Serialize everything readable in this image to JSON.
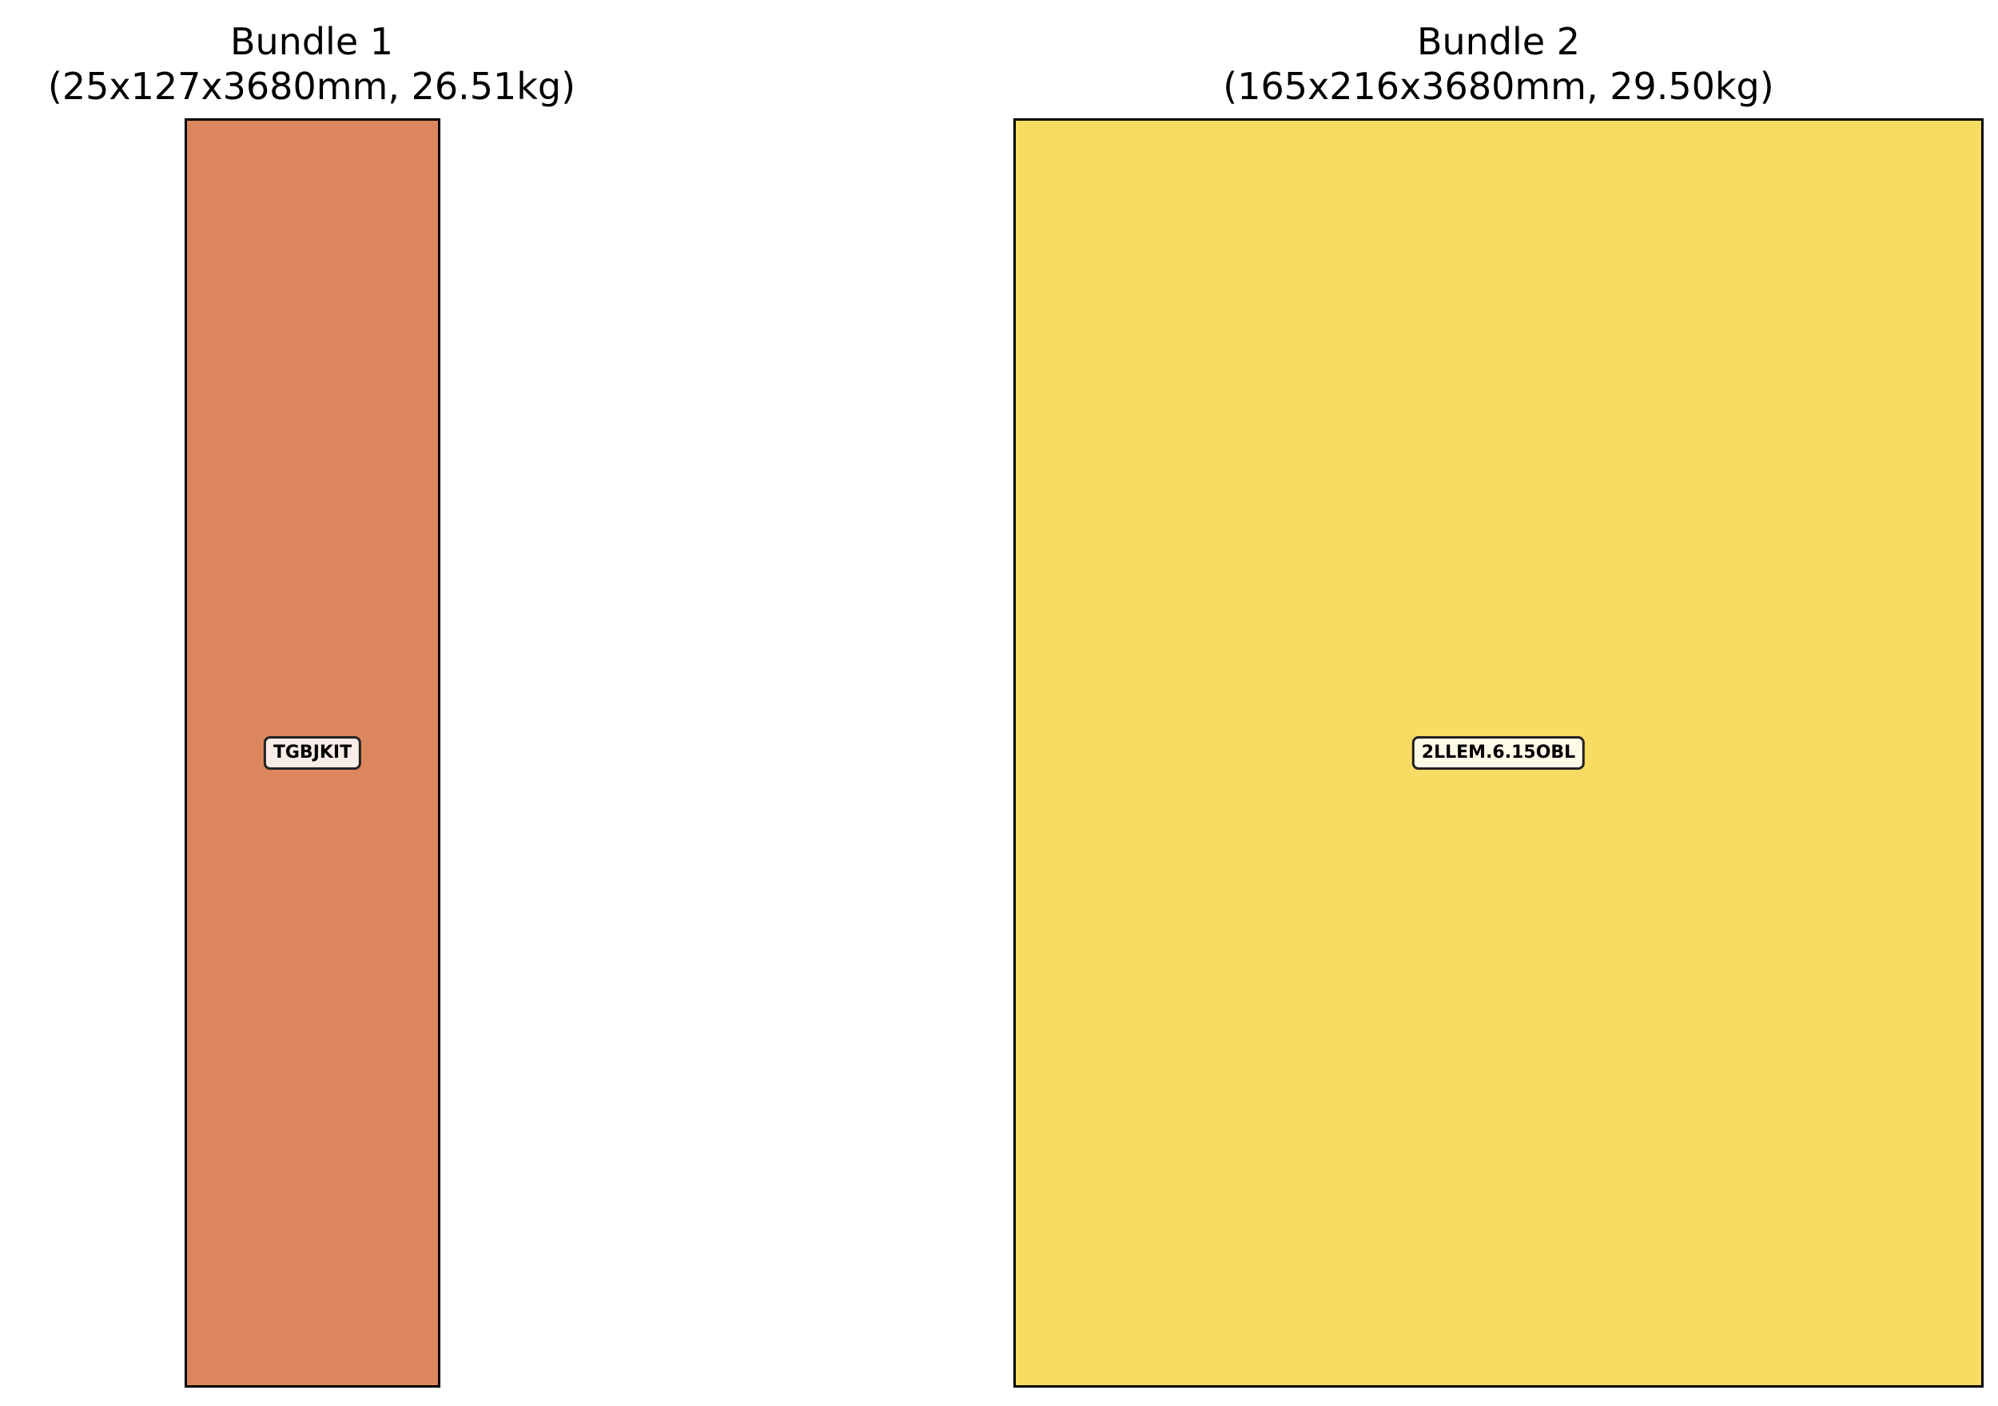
{
  "bundles": [
    {
      "title": "Bundle 1",
      "subtitle": "(25x127x3680mm, 26.51kg)",
      "item_label": "TGBJKIT",
      "color": "#dc865d"
    },
    {
      "title": "Bundle 2",
      "subtitle": "(165x216x3680mm, 29.50kg)",
      "item_label": "2LLEM.6.15OBL",
      "color": "#f8db62"
    }
  ]
}
